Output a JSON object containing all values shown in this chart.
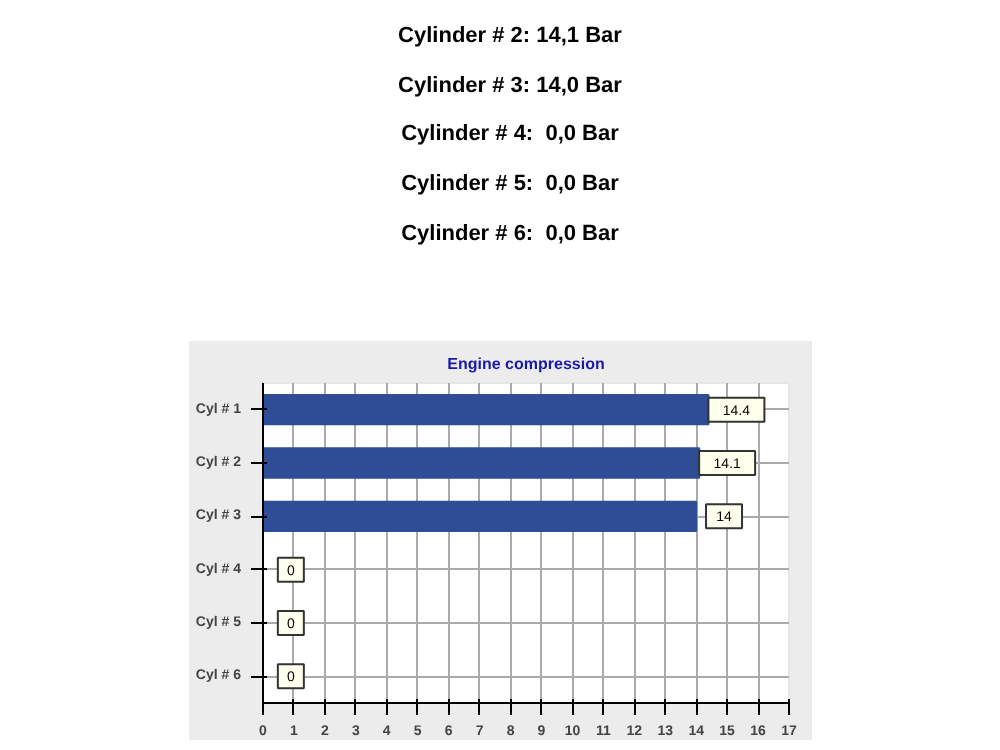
{
  "chart_data": {
    "type": "bar",
    "orientation": "horizontal",
    "title": "Engine compression",
    "annotations": [
      "Cylinder # 2: 14,1 Bar",
      "Cylinder # 3: 14,0 Bar",
      "Cylinder # 4:  0,0 Bar",
      "Cylinder # 5:  0,0 Bar",
      "Cylinder # 6:  0,0 Bar"
    ],
    "categories": [
      "Cyl # 1",
      "Cyl # 2",
      "Cyl # 3",
      "Cyl # 4",
      "Cyl # 5",
      "Cyl # 6"
    ],
    "values": [
      14.4,
      14.1,
      14,
      0,
      0,
      0
    ],
    "color": "#2e4d96",
    "data_labels": true,
    "xlim": [
      0,
      17
    ],
    "xticks": [
      0,
      1,
      2,
      3,
      4,
      5,
      6,
      7,
      8,
      9,
      10,
      11,
      12,
      13,
      14,
      15,
      16,
      17
    ],
    "grid": true
  }
}
